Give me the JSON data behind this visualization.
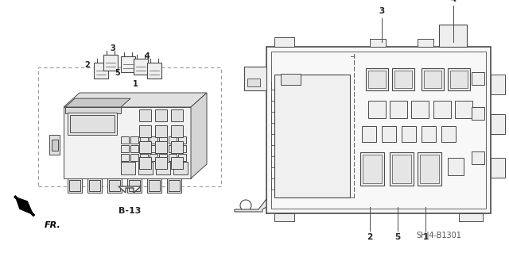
{
  "bg_color": "#ffffff",
  "line_color": "#4a4a4a",
  "title_code": "SHJ4-B1301",
  "b13_label": "B-13",
  "fr_label": "FR.",
  "figsize": [
    6.4,
    3.19
  ],
  "dpi": 100
}
